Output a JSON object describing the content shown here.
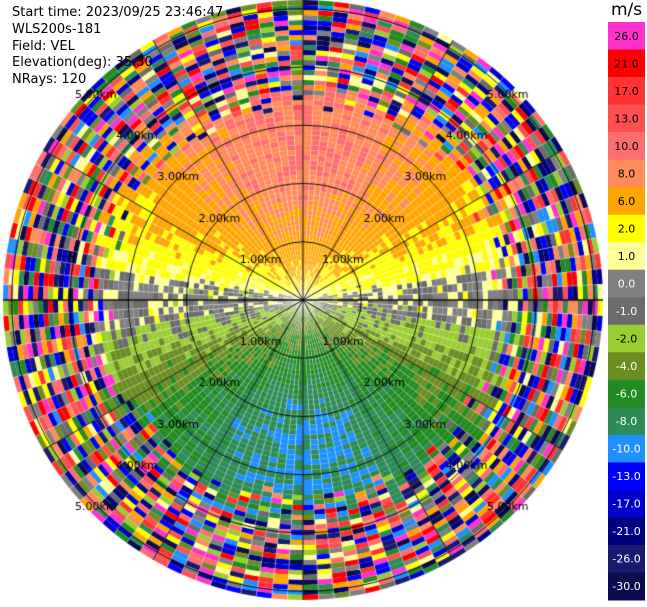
{
  "header": {
    "start_time": "Start time: 2023/09/25 23:46:47",
    "instrument": "WLS200s-181",
    "field": "Field: VEL",
    "elevation": "Elevation(deg): 35.30",
    "nrays": "NRays: 120"
  },
  "chart_data": {
    "type": "heatmap",
    "projection": "polar-ppi",
    "field": "VEL",
    "n_rays": 120,
    "range_rings_km": [
      1.0,
      2.0,
      3.0,
      4.0,
      5.0
    ],
    "ring_labels": [
      "1.00km",
      "2.00km",
      "3.00km",
      "4.00km",
      "5.00km"
    ],
    "colorbar": {
      "unit": "m/s",
      "tick_labels": [
        "26.0",
        "21.0",
        "17.0",
        "13.0",
        "10.0",
        "8.0",
        "6.0",
        "2.0",
        "1.0",
        "0.0",
        "-1.0",
        "-2.0",
        "-4.0",
        "-6.0",
        "-8.0",
        "-10.0",
        "-13.0",
        "-17.0",
        "-21.0",
        "-26.0",
        "-30.0"
      ],
      "colors": [
        "#ff33cc",
        "#ff0000",
        "#ff3333",
        "#ff5050",
        "#ff6e6e",
        "#ff8c5a",
        "#ffa500",
        "#ffff00",
        "#ffff99",
        "#808080",
        "#6b6b6b",
        "#9acd32",
        "#6b8e23",
        "#228b22",
        "#2e8b57",
        "#1e90ff",
        "#0000ff",
        "#0000cd",
        "#000080",
        "#191970",
        "#0b0b50"
      ]
    },
    "velocity_pattern": {
      "north_sector": "positive (orange/yellow, 2 to 10 m/s)",
      "south_sector": "negative (green, -2 to -8 m/s)",
      "east_west_band": "near zero (gray, -1 to 1 m/s)",
      "outer_ranges": "noise (all colors)"
    }
  }
}
